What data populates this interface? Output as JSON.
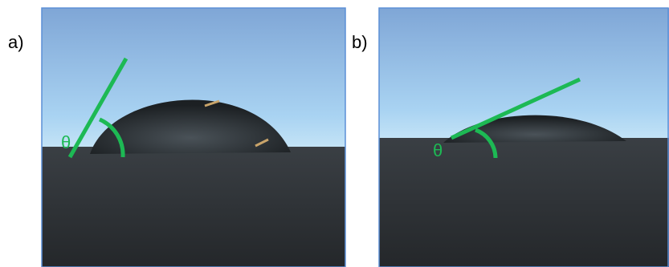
{
  "panels": [
    {
      "label": "a)",
      "angle_symbol": "θ"
    },
    {
      "label": "b)",
      "angle_symbol": "θ"
    }
  ]
}
